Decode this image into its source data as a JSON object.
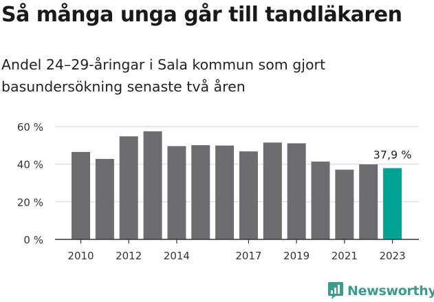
{
  "header": {
    "title": "Så många unga går till tandläkaren",
    "subtitle": "Andel 24–29-åringar i Sala kommun som gjort basundersökning senaste två åren"
  },
  "brand": {
    "name": "Newsworthy",
    "color": "#3a9b8e",
    "icon": "newsworthy-chart-bubble-icon"
  },
  "colors": {
    "bar": "#6d6c70",
    "highlight": "#00a394",
    "grid": "#d9d9d9",
    "axis": "#333333"
  },
  "chart_data": {
    "type": "bar",
    "title": "Så många unga går till tandläkaren",
    "subtitle": "Andel 24–29-åringar i Sala kommun som gjort basundersökning senaste två åren",
    "categories": [
      "2010",
      "2011",
      "2012",
      "2013",
      "2014",
      "2015",
      "2016",
      "2017",
      "2018",
      "2019",
      "2020",
      "2021",
      "2022",
      "2023"
    ],
    "values": [
      46.5,
      42.8,
      54.8,
      57.5,
      49.6,
      50.1,
      49.9,
      46.8,
      51.5,
      51.1,
      41.4,
      37.1,
      39.9,
      37.9
    ],
    "highlight_index": 13,
    "highlight_label": "37,9 %",
    "x_tick_labels": [
      "2010",
      "2012",
      "2014",
      "2017",
      "2019",
      "2021",
      "2023"
    ],
    "y_ticks": [
      0,
      20,
      40,
      60
    ],
    "y_tick_labels": [
      "0 %",
      "20 %",
      "40 %",
      "60 %"
    ],
    "ylim": [
      0,
      60
    ],
    "grid": true,
    "legend": "none"
  }
}
